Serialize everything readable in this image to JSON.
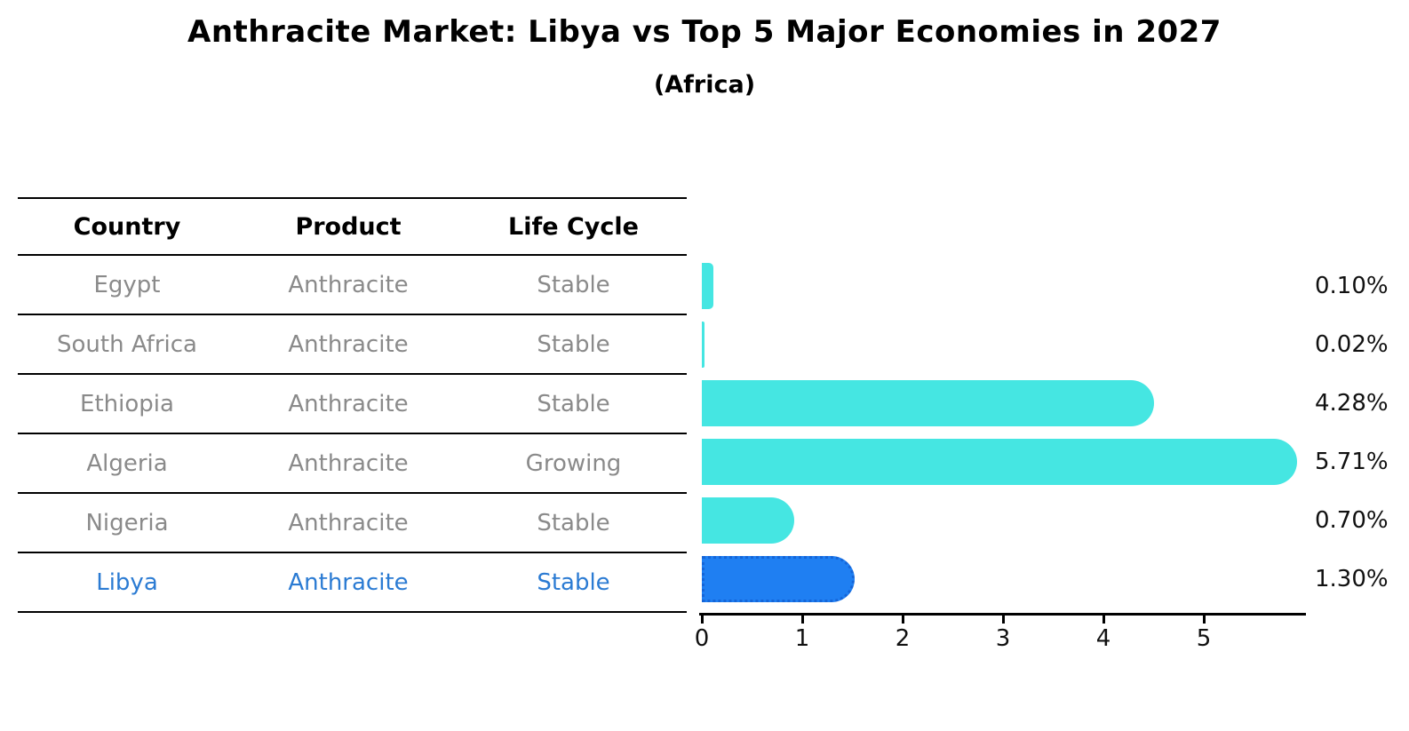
{
  "title": "Anthracite Market: Libya vs Top 5 Major Economies in 2027",
  "subtitle": "(Africa)",
  "table": {
    "headers": [
      "Country",
      "Product",
      "Life Cycle"
    ],
    "rows": [
      {
        "country": "Egypt",
        "product": "Anthracite",
        "life_cycle": "Stable",
        "highlight": false
      },
      {
        "country": "South Africa",
        "product": "Anthracite",
        "life_cycle": "Stable",
        "highlight": false
      },
      {
        "country": "Ethiopia",
        "product": "Anthracite",
        "life_cycle": "Stable",
        "highlight": false
      },
      {
        "country": "Algeria",
        "product": "Anthracite",
        "life_cycle": "Growing",
        "highlight": false
      },
      {
        "country": "Nigeria",
        "product": "Anthracite",
        "life_cycle": "Stable",
        "highlight": false
      },
      {
        "country": "Libya",
        "product": "Anthracite",
        "life_cycle": "Stable",
        "highlight": true
      }
    ]
  },
  "chart_data": {
    "type": "bar",
    "orientation": "horizontal",
    "title": "Anthracite Market: Libya vs Top 5 Major Economies in 2027",
    "subtitle": "(Africa)",
    "categories": [
      "Egypt",
      "South Africa",
      "Ethiopia",
      "Algeria",
      "Nigeria",
      "Libya"
    ],
    "values": [
      0.1,
      0.02,
      4.28,
      5.71,
      0.7,
      1.3
    ],
    "value_labels": [
      "0.10%",
      "0.02%",
      "4.28%",
      "5.71%",
      "0.70%",
      "1.30%"
    ],
    "unit": "percent",
    "x_ticks": [
      0,
      1,
      2,
      3,
      4,
      5
    ],
    "xlim": [
      0,
      6
    ],
    "grid": false,
    "legend_position": "none",
    "highlight_category": "Libya"
  },
  "colors": {
    "bar": "#45e6e2",
    "highlight_bar": "#1f7ff2",
    "highlight_bar_border": "#1565d8",
    "highlight_text": "#2b7bd3",
    "row_text": "#8a8a8a",
    "heading_text": "#000000",
    "axis": "#000000"
  }
}
